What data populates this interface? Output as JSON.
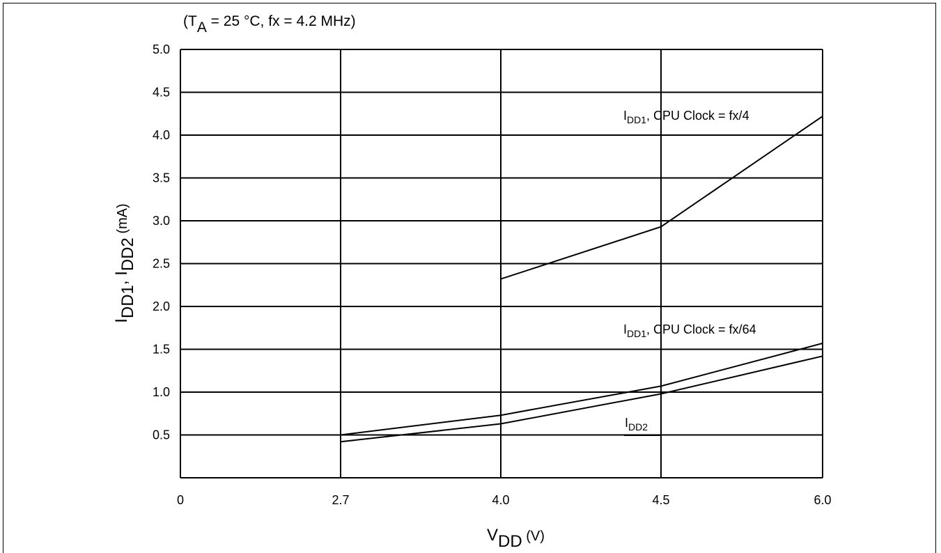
{
  "chart_data": {
    "type": "line",
    "condition": {
      "prefix": "(T",
      "prefix_sub": "A",
      "rest": " = 25 °C, fx = 4.2 MHz)"
    },
    "xlabel": {
      "main": "V",
      "sub": "DD",
      "unit": " (V)"
    },
    "ylabel": {
      "main1": "I",
      "sub1": "DD1",
      "sep": ", I",
      "sub2": "DD2",
      "unit": " (mA)"
    },
    "x_tick_labels": [
      "0",
      "2.7",
      "4.0",
      "4.5",
      "6.0"
    ],
    "y_ticks": [
      0.5,
      1.0,
      1.5,
      2.0,
      2.5,
      3.0,
      3.5,
      4.0,
      4.5,
      5.0
    ],
    "y_tick_labels": [
      "0.5",
      "1.0",
      "1.5",
      "2.0",
      "2.5",
      "3.0",
      "3.5",
      "4.0",
      "4.5",
      "5.0"
    ],
    "ylim": [
      0,
      5.0
    ],
    "grid": true,
    "series": [
      {
        "label_main": "I",
        "label_sub": "DD1",
        "label_rest": ", CPU Clock = fx/4",
        "points": [
          [
            "4.0",
            2.32
          ],
          [
            "4.5",
            2.93
          ],
          [
            "6.0",
            4.22
          ]
        ]
      },
      {
        "label_main": "I",
        "label_sub": "DD1",
        "label_rest": ", CPU Clock = fx/64",
        "points": [
          [
            "2.7",
            0.5
          ],
          [
            "4.0",
            0.73
          ],
          [
            "4.5",
            1.07
          ],
          [
            "6.0",
            1.57
          ]
        ]
      },
      {
        "label_main": "I",
        "label_sub": "DD2",
        "label_rest": "",
        "points": [
          [
            "2.7",
            0.42
          ],
          [
            "4.0",
            0.63
          ],
          [
            "4.5",
            0.98
          ],
          [
            "6.0",
            1.42
          ]
        ]
      }
    ]
  }
}
